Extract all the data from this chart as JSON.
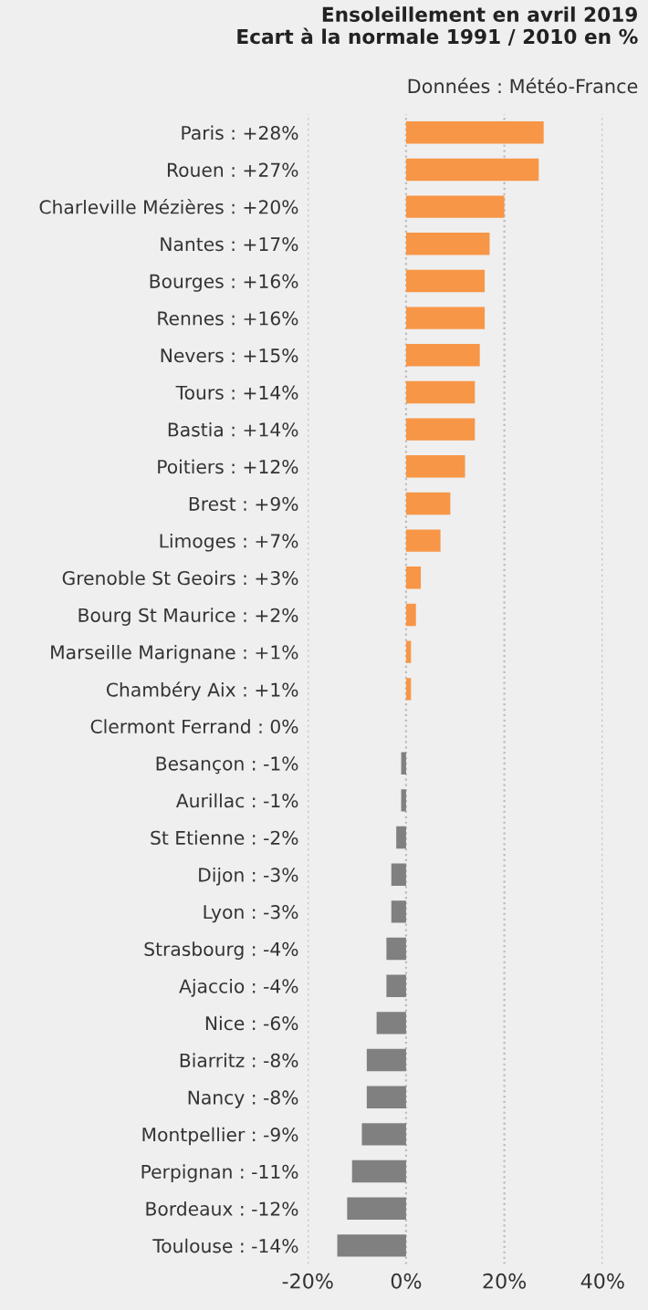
{
  "chart_data": {
    "type": "bar",
    "orientation": "horizontal",
    "title": "Ensoleillement en avril 2019\nEcart à la normale 1991 / 2010 en %",
    "annotations": [
      "Données : Météo-France"
    ],
    "categories": [
      "Paris : +28%",
      "Rouen : +27%",
      "Charleville Mézières : +20%",
      "Nantes : +17%",
      "Bourges : +16%",
      "Rennes : +16%",
      "Nevers : +15%",
      "Tours : +14%",
      "Bastia : +14%",
      "Poitiers : +12%",
      "Brest : +9%",
      "Limoges : +7%",
      "Grenoble St Geoirs : +3%",
      "Bourg St Maurice : +2%",
      "Marseille Marignane : +1%",
      "Chambéry Aix : +1%",
      "Clermont Ferrand : 0%",
      "Besançon : -1%",
      "Aurillac : -1%",
      "St Etienne : -2%",
      "Dijon : -3%",
      "Lyon : -3%",
      "Strasbourg : -4%",
      "Ajaccio : -4%",
      "Nice : -6%",
      "Biarritz : -8%",
      "Nancy : -8%",
      "Montpellier : -9%",
      "Perpignan : -11%",
      "Bordeaux : -12%",
      "Toulouse : -14%"
    ],
    "values": [
      28,
      27,
      20,
      17,
      16,
      16,
      15,
      14,
      14,
      12,
      9,
      7,
      3,
      2,
      1,
      1,
      0,
      -1,
      -1,
      -2,
      -3,
      -3,
      -4,
      -4,
      -6,
      -8,
      -8,
      -9,
      -11,
      -12,
      -14
    ],
    "colors": [
      "#f79646",
      "#f79646",
      "#f79646",
      "#f79646",
      "#f79646",
      "#f79646",
      "#f79646",
      "#f79646",
      "#f79646",
      "#f79646",
      "#f79646",
      "#f79646",
      "#f79646",
      "#f79646",
      "#f79646",
      "#f79646",
      "#f79646",
      "#808080",
      "#808080",
      "#808080",
      "#808080",
      "#808080",
      "#808080",
      "#808080",
      "#808080",
      "#808080",
      "#808080",
      "#808080",
      "#808080",
      "#808080",
      "#808080"
    ],
    "xlim": [
      -20,
      40
    ],
    "xticks": [
      {
        "value": -20,
        "label": "-20%"
      },
      {
        "value": 0,
        "label": "0%"
      },
      {
        "value": 20,
        "label": "20%"
      },
      {
        "value": 40,
        "label": "40%"
      }
    ],
    "grid": "x"
  }
}
